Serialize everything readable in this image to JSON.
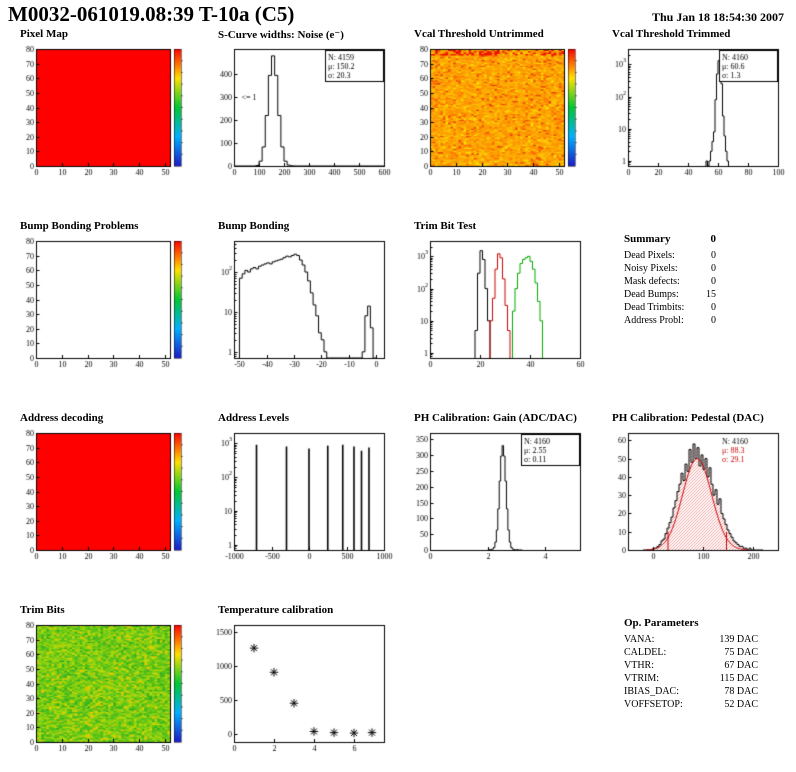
{
  "header": {
    "title": "M0032-061019.08:39 T-10a (C5)",
    "date": "Thu Jan 18 18:54:30 2007"
  },
  "summary": {
    "heading": "Summary",
    "heading_value": "0",
    "rows": [
      {
        "label": "Dead Pixels:",
        "value": "0"
      },
      {
        "label": "Noisy Pixels:",
        "value": "0"
      },
      {
        "label": "Mask defects:",
        "value": "0"
      },
      {
        "label": "Dead Bumps:",
        "value": "15"
      },
      {
        "label": "Dead Trimbits:",
        "value": "0"
      },
      {
        "label": "Address Probl:",
        "value": "0"
      }
    ]
  },
  "op_parameters": {
    "heading": "Op. Parameters",
    "rows": [
      {
        "label": "VANA:",
        "value": "139 DAC"
      },
      {
        "label": "CALDEL:",
        "value": "75 DAC"
      },
      {
        "label": "VTHR:",
        "value": "67 DAC"
      },
      {
        "label": "VTRIM:",
        "value": "115 DAC"
      },
      {
        "label": "IBIAS_DAC:",
        "value": "78 DAC"
      },
      {
        "label": "VOFFSETOP:",
        "value": "52 DAC"
      }
    ]
  },
  "chart_data": [
    {
      "title": "Pixel Map",
      "type": "heatmap",
      "style": "solid",
      "color": "#ff0000",
      "colorbar": true,
      "x_range": [
        0,
        52
      ],
      "y_range": [
        0,
        80
      ],
      "x_ticks": [
        0,
        10,
        20,
        30,
        40,
        50
      ],
      "y_ticks": [
        0,
        10,
        20,
        30,
        40,
        50,
        60,
        70,
        80
      ]
    },
    {
      "title": "S-Curve widths: Noise (e⁻)",
      "type": "hist",
      "x_range": [
        0,
        600
      ],
      "y_range": [
        0,
        510
      ],
      "x_ticks": [
        0,
        100,
        200,
        300,
        400,
        500,
        600
      ],
      "y_ticks": [
        0,
        100,
        200,
        300,
        400
      ],
      "bins": {
        "start": 0,
        "width": 12.5,
        "values": [
          0,
          0,
          0,
          0,
          0,
          0,
          0,
          2,
          21,
          83,
          220,
          395,
          480,
          395,
          220,
          83,
          21,
          4,
          1,
          0,
          0,
          0,
          0,
          0,
          0,
          0,
          0,
          0,
          0,
          0,
          0,
          0,
          0,
          0,
          0,
          0,
          0,
          0,
          0,
          0,
          0,
          0,
          0,
          0,
          0,
          0,
          0,
          0
        ]
      },
      "stats": {
        "N": "4159",
        "mu": "150.2",
        "sigma": "20.3"
      },
      "annotation": {
        "text": "<= 1",
        "x": 30,
        "y": 295
      }
    },
    {
      "title": "Vcal Threshold Untrimmed",
      "type": "heatmap",
      "style": "noise",
      "seed": 7,
      "colorbar": true,
      "red_top": "#ee1100",
      "palette": [
        [
          0.04,
          "#e64500"
        ],
        [
          0.12,
          "#fc6d00"
        ],
        [
          0.5,
          "#fc9400"
        ],
        [
          0.82,
          "#fcae00"
        ],
        [
          0.95,
          "#fcc400"
        ],
        [
          1,
          "#ffdf00"
        ]
      ],
      "x_range": [
        0,
        52
      ],
      "y_range": [
        0,
        80
      ],
      "x_ticks": [
        0,
        10,
        20,
        30,
        40,
        50
      ],
      "y_ticks": [
        0,
        10,
        20,
        30,
        40,
        50,
        60,
        70,
        80
      ]
    },
    {
      "title": "Vcal Threshold Trimmed",
      "type": "hist",
      "log_y": true,
      "x_range": [
        0,
        100
      ],
      "y_range": [
        0.7,
        3000
      ],
      "x_ticks": [
        0,
        20,
        40,
        60,
        80,
        100
      ],
      "y_log_ticks": [
        0,
        1,
        2,
        3
      ],
      "bins": {
        "start": 52,
        "width": 1,
        "values": [
          1,
          0,
          1,
          2,
          4,
          8,
          80,
          500,
          1300,
          1000,
          250,
          25,
          6,
          2,
          1
        ]
      },
      "stats": {
        "N": "4160",
        "mu": "60.6",
        "sigma": "1.3"
      }
    },
    {
      "title": "Bump Bonding Problems",
      "type": "heatmap",
      "style": "empty",
      "colorbar": true,
      "x_range": [
        0,
        52
      ],
      "y_range": [
        0,
        80
      ],
      "x_ticks": [
        0,
        10,
        20,
        30,
        40,
        50
      ],
      "y_ticks": [
        0,
        10,
        20,
        30,
        40,
        50,
        60,
        70,
        80
      ]
    },
    {
      "title": "Bump Bonding",
      "type": "hist",
      "log_y": true,
      "x_range": [
        -52,
        3
      ],
      "y_range": [
        0.7,
        600
      ],
      "x_ticks": [
        -50,
        -40,
        -30,
        -20,
        -10,
        0
      ],
      "y_log_ticks": [
        0,
        1,
        2
      ],
      "bins": {
        "start": -50,
        "width": 1,
        "values": [
          70,
          90,
          110,
          100,
          120,
          130,
          120,
          140,
          150,
          160,
          170,
          160,
          180,
          190,
          200,
          210,
          230,
          250,
          240,
          260,
          280,
          260,
          200,
          150,
          100,
          60,
          30,
          15,
          8,
          3,
          2,
          1,
          0,
          0,
          0,
          0,
          0,
          0,
          0,
          0,
          0,
          0,
          0,
          0,
          0,
          1,
          8,
          14,
          4,
          0
        ]
      }
    },
    {
      "title": "Trim Bit Test",
      "type": "multi_hist",
      "log_y": true,
      "x_range": [
        0,
        60
      ],
      "y_range": [
        0.7,
        3000
      ],
      "x_ticks": [
        0,
        20,
        40,
        60
      ],
      "y_log_ticks": [
        0,
        1,
        2,
        3
      ],
      "series": [
        {
          "color": "#000000",
          "bins": {
            "start": 18,
            "width": 1,
            "values": [
              5,
              300,
              1500,
              800,
              100,
              10
            ]
          }
        },
        {
          "color": "#cc0000",
          "bins": {
            "start": 24,
            "width": 1,
            "values": [
              10,
              50,
              400,
              1200,
              900,
              200,
              30,
              5
            ]
          }
        },
        {
          "color": "#00aa00",
          "bins": {
            "start": 33,
            "width": 1,
            "values": [
              20,
              100,
              300,
              600,
              800,
              900,
              1000,
              700,
              400,
              150,
              40,
              10
            ]
          }
        }
      ]
    },
    {
      "title": "Address decoding",
      "type": "heatmap",
      "style": "solid",
      "color": "#ff0000",
      "colorbar": true,
      "x_range": [
        0,
        52
      ],
      "y_range": [
        0,
        80
      ],
      "x_ticks": [
        0,
        10,
        20,
        30,
        40,
        50
      ],
      "y_ticks": [
        0,
        10,
        20,
        30,
        40,
        50,
        60,
        70,
        80
      ]
    },
    {
      "title": "Address Levels",
      "type": "spikes",
      "log_y": true,
      "x_range": [
        -1000,
        1000
      ],
      "y_range": [
        0.7,
        2000
      ],
      "x_ticks": [
        -1000,
        -500,
        0,
        500,
        1000
      ],
      "y_log_ticks": [
        0,
        1,
        2,
        3
      ],
      "spikes": [
        [
          -700,
          900
        ],
        [
          -300,
          800
        ],
        [
          0,
          700
        ],
        [
          250,
          850
        ],
        [
          450,
          900
        ],
        [
          600,
          800
        ],
        [
          700,
          600
        ],
        [
          800,
          750
        ]
      ]
    },
    {
      "title": "PH Calibration: Gain (ADC/DAC)",
      "type": "hist",
      "x_range": [
        0,
        5.2
      ],
      "y_range": [
        0,
        370
      ],
      "x_ticks": [
        0,
        2,
        4
      ],
      "y_ticks": [
        0,
        50,
        100,
        150,
        200,
        250,
        300,
        350
      ],
      "bins": {
        "start": 2,
        "width": 0.05,
        "values": [
          0,
          1,
          2,
          3,
          8,
          25,
          63,
          130,
          218,
          297,
          330,
          297,
          218,
          130,
          63,
          25,
          8,
          3,
          1,
          0,
          1,
          0,
          0,
          0
        ]
      },
      "stats": {
        "N": "4160",
        "mu": "2.55",
        "sigma": "0.11"
      }
    },
    {
      "title": "PH Calibration: Pedestal (DAC)",
      "type": "hist",
      "x_range": [
        -50,
        250
      ],
      "y_range": [
        0,
        64
      ],
      "x_ticks": [
        0,
        100,
        200
      ],
      "y_ticks": [
        0,
        10,
        20,
        30,
        40,
        50,
        60
      ],
      "bins": {
        "start": -20,
        "width": 4,
        "values": [
          0,
          0,
          0,
          0,
          0,
          1,
          1,
          2,
          3,
          5,
          6,
          9,
          12,
          15,
          18,
          23,
          27,
          32,
          36,
          42,
          38,
          47,
          43,
          55,
          48,
          58,
          50,
          56,
          46,
          52,
          44,
          50,
          40,
          45,
          36,
          30,
          33,
          25,
          28,
          20,
          17,
          14,
          11,
          9,
          7,
          5,
          4,
          3,
          2,
          2,
          1,
          1,
          0,
          1,
          0,
          0,
          0,
          0,
          0,
          0
        ]
      },
      "fill_under": "red-hatch",
      "fit": {
        "mu": 88.3,
        "sigma": 29.1,
        "amp": 50,
        "lines": [
          30,
          147
        ],
        "color": "#cc0000"
      },
      "stats": {
        "N": "4160",
        "mu": "88.3",
        "sigma": "29.1"
      },
      "stats_box": false,
      "stats_colors": [
        "#000000",
        "#cc0000",
        "#cc0000"
      ]
    },
    {
      "title": "Trim Bits",
      "type": "heatmap",
      "style": "noise",
      "seed": 13,
      "colorbar": true,
      "palette": [
        [
          0.06,
          "#2fae1e"
        ],
        [
          0.3,
          "#4dbd1a"
        ],
        [
          0.6,
          "#72ca14"
        ],
        [
          0.85,
          "#9cd40c"
        ],
        [
          0.96,
          "#c8d603"
        ],
        [
          1,
          "#f2c300"
        ]
      ],
      "x_range": [
        0,
        52
      ],
      "y_range": [
        0,
        80
      ],
      "x_ticks": [
        0,
        10,
        20,
        30,
        40,
        50
      ],
      "y_ticks": [
        0,
        10,
        20,
        30,
        40,
        50,
        60,
        70,
        80
      ]
    },
    {
      "title": "Temperature calibration",
      "type": "scatter",
      "x_range": [
        0,
        7.5
      ],
      "y_range": [
        -120,
        1600
      ],
      "x_ticks": [
        0,
        2,
        4,
        6
      ],
      "y_ticks": [
        0,
        500,
        1000,
        1500
      ],
      "points": [
        [
          1,
          1260
        ],
        [
          2,
          905
        ],
        [
          3,
          450
        ],
        [
          4,
          35
        ],
        [
          5,
          18
        ],
        [
          6,
          12
        ],
        [
          6.9,
          18
        ]
      ]
    }
  ]
}
